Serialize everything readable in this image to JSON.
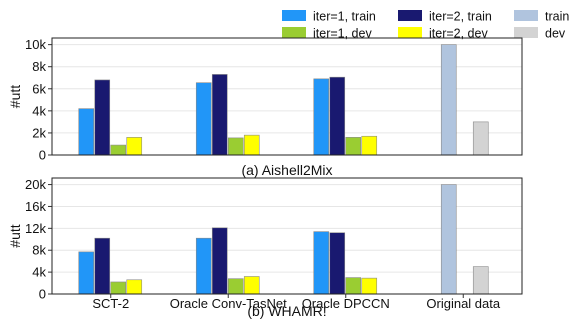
{
  "legend": [
    {
      "name": "iter=1, train",
      "color": "#2196F8"
    },
    {
      "name": "iter=2, train",
      "color": "#191970"
    },
    {
      "name": "train",
      "color": "#B0C4DE"
    },
    {
      "name": "iter=1, dev",
      "color": "#9ACD32"
    },
    {
      "name": "iter=2, dev",
      "color": "#FFFF00"
    },
    {
      "name": "dev",
      "color": "#D3D3D3"
    }
  ],
  "chart_data": [
    {
      "type": "bar",
      "caption": "(a) Aishell2Mix",
      "ylabel": "#utt",
      "ylim": [
        0,
        10600
      ],
      "yticks": [
        0,
        2000,
        4000,
        6000,
        8000,
        10000
      ],
      "ytick_labels": [
        "0",
        "2k",
        "4k",
        "6k",
        "8k",
        "10k"
      ],
      "grid": true,
      "categories": [
        "SCT-2",
        "Oracle Conv-TasNet",
        "Oracle DPCCN",
        "Original data"
      ],
      "show_category_labels": false,
      "series": [
        {
          "name": "iter=1, train",
          "values": [
            4200,
            6550,
            6900,
            null
          ]
        },
        {
          "name": "iter=2, train",
          "values": [
            6800,
            7300,
            7050,
            null
          ]
        },
        {
          "name": "iter=1, dev",
          "values": [
            900,
            1550,
            1600,
            null
          ]
        },
        {
          "name": "iter=2, dev",
          "values": [
            1600,
            1800,
            1700,
            null
          ]
        },
        {
          "name": "train",
          "values": [
            null,
            null,
            null,
            10000
          ]
        },
        {
          "name": "dev",
          "values": [
            null,
            null,
            null,
            3000
          ]
        }
      ]
    },
    {
      "type": "bar",
      "caption": "(b) WHAMR!",
      "ylabel": "#utt",
      "ylim": [
        0,
        21200
      ],
      "yticks": [
        0,
        4000,
        8000,
        12000,
        16000,
        20000
      ],
      "ytick_labels": [
        "0",
        "4k",
        "8k",
        "12k",
        "16k",
        "20k"
      ],
      "grid": true,
      "categories": [
        "SCT-2",
        "Oracle Conv-TasNet",
        "Oracle DPCCN",
        "Original data"
      ],
      "show_category_labels": true,
      "series": [
        {
          "name": "iter=1, train",
          "values": [
            7700,
            10200,
            11400,
            null
          ]
        },
        {
          "name": "iter=2, train",
          "values": [
            10200,
            12100,
            11200,
            null
          ]
        },
        {
          "name": "iter=1, dev",
          "values": [
            2200,
            2800,
            3000,
            null
          ]
        },
        {
          "name": "iter=2, dev",
          "values": [
            2600,
            3200,
            2900,
            null
          ]
        },
        {
          "name": "train",
          "values": [
            null,
            null,
            null,
            20000
          ]
        },
        {
          "name": "dev",
          "values": [
            null,
            null,
            null,
            5000
          ]
        }
      ]
    }
  ]
}
